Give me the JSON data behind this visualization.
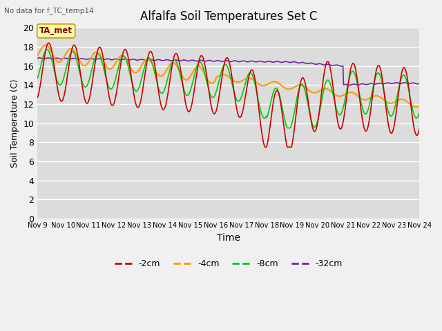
{
  "title": "Alfalfa Soil Temperatures Set C",
  "ylabel": "Soil Temperature (C)",
  "xlabel": "Time",
  "note": "No data for f_TC_temp14",
  "annotation": "TA_met",
  "ylim": [
    0,
    20
  ],
  "yticks": [
    0,
    2,
    4,
    6,
    8,
    10,
    12,
    14,
    16,
    18,
    20
  ],
  "xtick_labels": [
    "Nov 9",
    "Nov 10",
    "Nov 11",
    "Nov 12",
    "Nov 13",
    "Nov 14",
    "Nov 15",
    "Nov 16",
    "Nov 17",
    "Nov 18",
    "Nov 19",
    "Nov 20",
    "Nov 21",
    "Nov 22",
    "Nov 23",
    "Nov 24"
  ],
  "bg_color": "#dcdcdc",
  "grid_color": "#ffffff",
  "fig_color": "#f0f0f0",
  "colors": {
    "2cm": "#cc0000",
    "4cm": "#ff9900",
    "8cm": "#00cc00",
    "32cm": "#7722aa"
  }
}
